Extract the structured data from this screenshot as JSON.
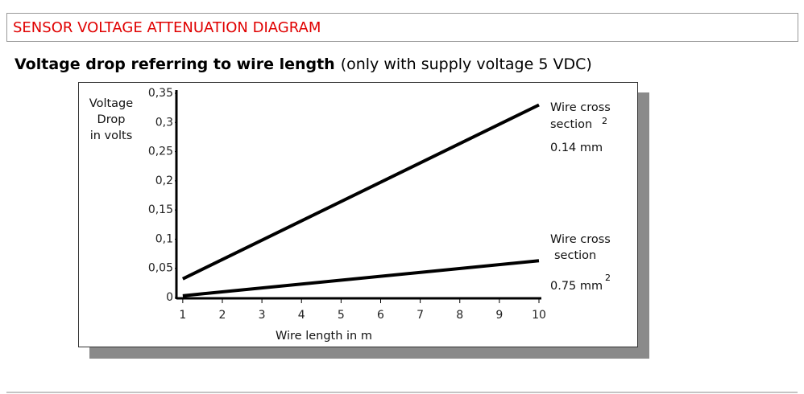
{
  "header": {
    "title": "SENSOR VOLTAGE ATTENUATION DIAGRAM"
  },
  "subtitle": {
    "bold": "Voltage drop referring to wire length",
    "note": "(only with supply voltage 5 VDC)"
  },
  "chart_data": {
    "type": "line",
    "y_label": [
      "Voltage",
      "Drop",
      "in volts"
    ],
    "x_label": "Wire length in m",
    "x": [
      1,
      10
    ],
    "series": [
      {
        "label": [
          "Wire cross",
          "section",
          "0.14 mm"
        ],
        "label_sup": "2",
        "color": "#000000",
        "values": [
          0.032,
          0.33
        ]
      },
      {
        "label": [
          "Wire cross",
          "section",
          "0.75 mm"
        ],
        "label_sup": "2",
        "color": "#000000",
        "values": [
          0.003,
          0.063
        ]
      }
    ],
    "xlim": [
      0.84,
      10
    ],
    "xticks": [
      1,
      2,
      3,
      4,
      5,
      6,
      7,
      8,
      9,
      10
    ],
    "ylim": [
      0,
      0.35
    ],
    "yticks": [
      0,
      {
        "value": 0.05,
        "label": "0,05"
      },
      {
        "value": 0.1,
        "label": "0,1"
      },
      {
        "value": 0.15,
        "label": "0,15"
      },
      {
        "value": 0.2,
        "label": "0,2"
      },
      {
        "value": 0.25,
        "label": "0,25"
      },
      {
        "value": 0.3,
        "label": "0,3"
      },
      {
        "value": 0.35,
        "label": "0,35"
      }
    ],
    "grid": false
  }
}
